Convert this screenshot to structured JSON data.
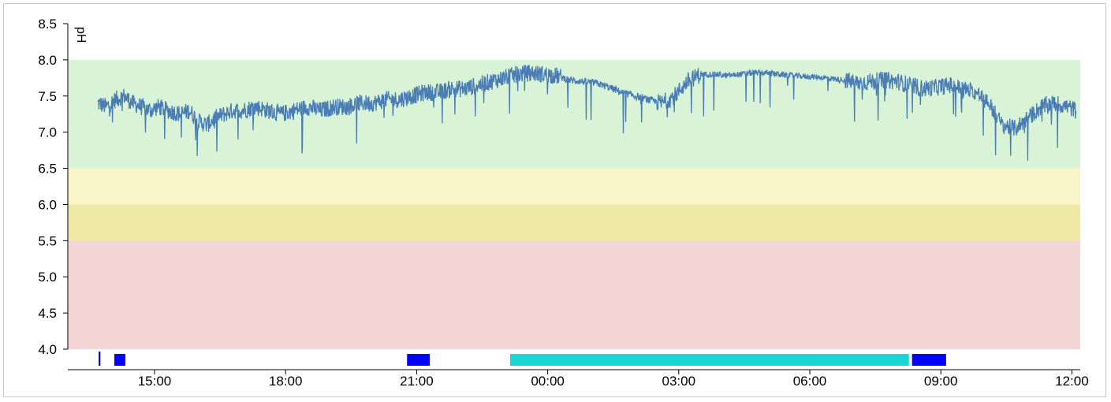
{
  "chart_data": {
    "type": "line",
    "ylabel": "pH",
    "xlabel": "",
    "title": "",
    "ylim": [
      4.0,
      8.5
    ],
    "y_ticks": [
      "4.0",
      "4.5",
      "5.0",
      "5.5",
      "6.0",
      "6.5",
      "7.0",
      "7.5",
      "8.0",
      "8.5"
    ],
    "x_range_hours": [
      13.7,
      36.1
    ],
    "x_ticks": [
      {
        "label": "15:00",
        "hour": 15
      },
      {
        "label": "18:00",
        "hour": 18
      },
      {
        "label": "21:00",
        "hour": 21
      },
      {
        "label": "00:00",
        "hour": 24
      },
      {
        "label": "03:00",
        "hour": 27
      },
      {
        "label": "06:00",
        "hour": 30
      },
      {
        "label": "09:00",
        "hour": 33
      },
      {
        "label": "12:00",
        "hour": 36
      }
    ],
    "bands": [
      {
        "from": 6.5,
        "to": 8.0,
        "color": "#d8f3d6"
      },
      {
        "from": 6.0,
        "to": 6.5,
        "color": "#f8f6c8"
      },
      {
        "from": 5.5,
        "to": 6.0,
        "color": "#eeeaa6"
      },
      {
        "from": 4.0,
        "to": 5.5,
        "color": "#f4d6d6"
      }
    ],
    "series": [
      {
        "color": "#4a7db5",
        "points": [
          [
            13.7,
            7.4
          ],
          [
            13.9,
            7.35
          ],
          [
            14.1,
            7.45
          ],
          [
            14.3,
            7.5
          ],
          [
            14.5,
            7.4
          ],
          [
            14.7,
            7.35
          ],
          [
            14.9,
            7.3
          ],
          [
            15.1,
            7.35
          ],
          [
            15.3,
            7.3
          ],
          [
            15.6,
            7.25
          ],
          [
            15.8,
            7.3
          ],
          [
            16.0,
            7.15
          ],
          [
            16.2,
            7.1
          ],
          [
            16.4,
            7.2
          ],
          [
            16.6,
            7.25
          ],
          [
            16.8,
            7.3
          ],
          [
            17.0,
            7.3
          ],
          [
            17.3,
            7.35
          ],
          [
            17.6,
            7.3
          ],
          [
            17.9,
            7.25
          ],
          [
            18.2,
            7.3
          ],
          [
            18.5,
            7.35
          ],
          [
            18.8,
            7.3
          ],
          [
            19.1,
            7.35
          ],
          [
            19.4,
            7.35
          ],
          [
            19.7,
            7.4
          ],
          [
            20.0,
            7.4
          ],
          [
            20.3,
            7.45
          ],
          [
            20.6,
            7.45
          ],
          [
            20.9,
            7.5
          ],
          [
            21.2,
            7.55
          ],
          [
            21.5,
            7.55
          ],
          [
            21.8,
            7.6
          ],
          [
            22.1,
            7.6
          ],
          [
            22.4,
            7.65
          ],
          [
            22.7,
            7.7
          ],
          [
            23.0,
            7.75
          ],
          [
            23.3,
            7.8
          ],
          [
            23.6,
            7.82
          ],
          [
            23.9,
            7.8
          ],
          [
            24.2,
            7.78
          ],
          [
            24.5,
            7.72
          ],
          [
            24.8,
            7.7
          ],
          [
            25.1,
            7.68
          ],
          [
            25.4,
            7.62
          ],
          [
            25.7,
            7.55
          ],
          [
            26.0,
            7.5
          ],
          [
            26.3,
            7.45
          ],
          [
            26.6,
            7.4
          ],
          [
            26.9,
            7.5
          ],
          [
            27.2,
            7.7
          ],
          [
            27.5,
            7.8
          ],
          [
            27.8,
            7.8
          ],
          [
            28.1,
            7.78
          ],
          [
            28.4,
            7.8
          ],
          [
            28.7,
            7.82
          ],
          [
            29.0,
            7.82
          ],
          [
            29.3,
            7.8
          ],
          [
            29.6,
            7.78
          ],
          [
            29.9,
            7.77
          ],
          [
            30.2,
            7.76
          ],
          [
            30.5,
            7.74
          ],
          [
            30.8,
            7.72
          ],
          [
            31.1,
            7.68
          ],
          [
            31.4,
            7.7
          ],
          [
            31.7,
            7.72
          ],
          [
            32.0,
            7.7
          ],
          [
            32.3,
            7.65
          ],
          [
            32.6,
            7.6
          ],
          [
            32.9,
            7.62
          ],
          [
            33.2,
            7.65
          ],
          [
            33.5,
            7.6
          ],
          [
            33.8,
            7.55
          ],
          [
            34.1,
            7.4
          ],
          [
            34.4,
            7.1
          ],
          [
            34.7,
            7.05
          ],
          [
            35.0,
            7.2
          ],
          [
            35.3,
            7.35
          ],
          [
            35.6,
            7.4
          ],
          [
            35.9,
            7.35
          ],
          [
            36.1,
            7.3
          ]
        ]
      }
    ],
    "event_bars": [
      {
        "start": 13.72,
        "end": 13.76,
        "color": "#0000ff",
        "height": 1.0
      },
      {
        "start": 14.08,
        "end": 14.33,
        "color": "#0000ff",
        "height": 0.83
      },
      {
        "start": 20.78,
        "end": 21.3,
        "color": "#0000ff",
        "height": 0.83
      },
      {
        "start": 23.14,
        "end": 32.27,
        "color": "#18d6d0",
        "height": 0.83
      },
      {
        "start": 32.34,
        "end": 33.12,
        "color": "#0000ff",
        "height": 0.83
      }
    ]
  }
}
